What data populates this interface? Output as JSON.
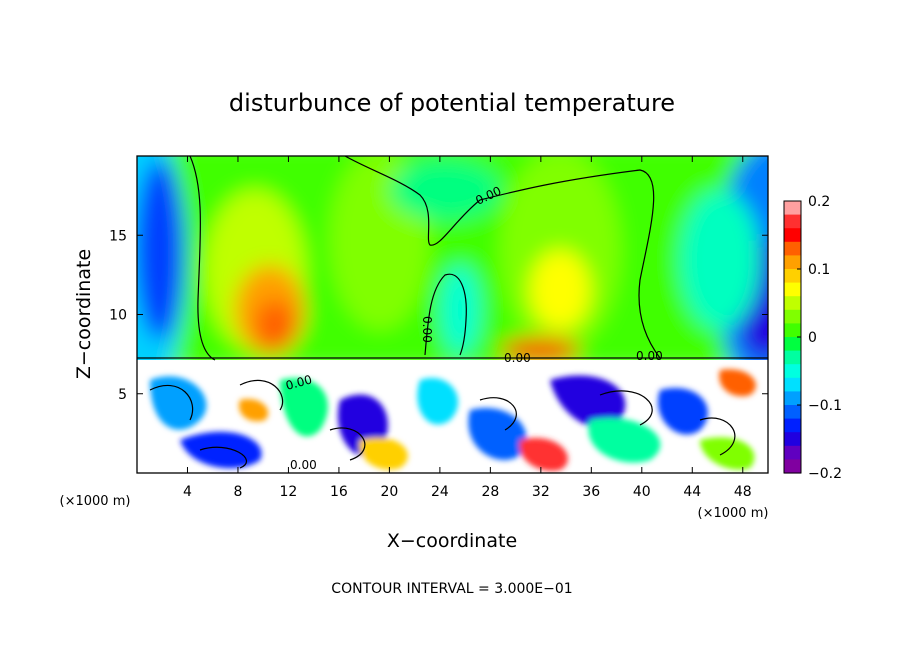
{
  "chart_data": {
    "type": "heatmap",
    "title": "disturbunce of potential temperature",
    "xlabel": "X−coordinate",
    "ylabel": "Z−coordinate",
    "x_unit_label": "(×1000 m)",
    "y_unit_label": "(×1000 m)",
    "xlim": [
      0,
      50
    ],
    "ylim": [
      0,
      20
    ],
    "x_ticks": [
      "4",
      "8",
      "12",
      "16",
      "20",
      "24",
      "28",
      "32",
      "36",
      "40",
      "44",
      "48"
    ],
    "y_ticks": [
      "5",
      "10",
      "15"
    ],
    "colorbar": {
      "min": -0.2,
      "max": 0.2,
      "tick_labels": [
        "0.2",
        "0.1",
        "0",
        "−0.1",
        "−0.2"
      ],
      "colors": [
        "#ffa0a0",
        "#ff3030",
        "#ff0000",
        "#ff6000",
        "#ffa000",
        "#ffd000",
        "#ffff00",
        "#c0ff00",
        "#80ff00",
        "#40ff00",
        "#00ff40",
        "#00ffa0",
        "#00ffe0",
        "#00e0ff",
        "#00a0ff",
        "#0060ff",
        "#0020ff",
        "#2000e0",
        "#6000c0",
        "#8000a0"
      ]
    },
    "contour_labels": [
      "0.00",
      "0.00",
      "0.00",
      "0.00",
      "0.00",
      "0.00"
    ],
    "contour_interval_text": "CONTOUR INTERVAL = 3.000E−01",
    "colors": {
      "above_peak_left": "#ff8000",
      "upper_green": "#40ff00",
      "lower_outlier": "#ffffff"
    }
  }
}
